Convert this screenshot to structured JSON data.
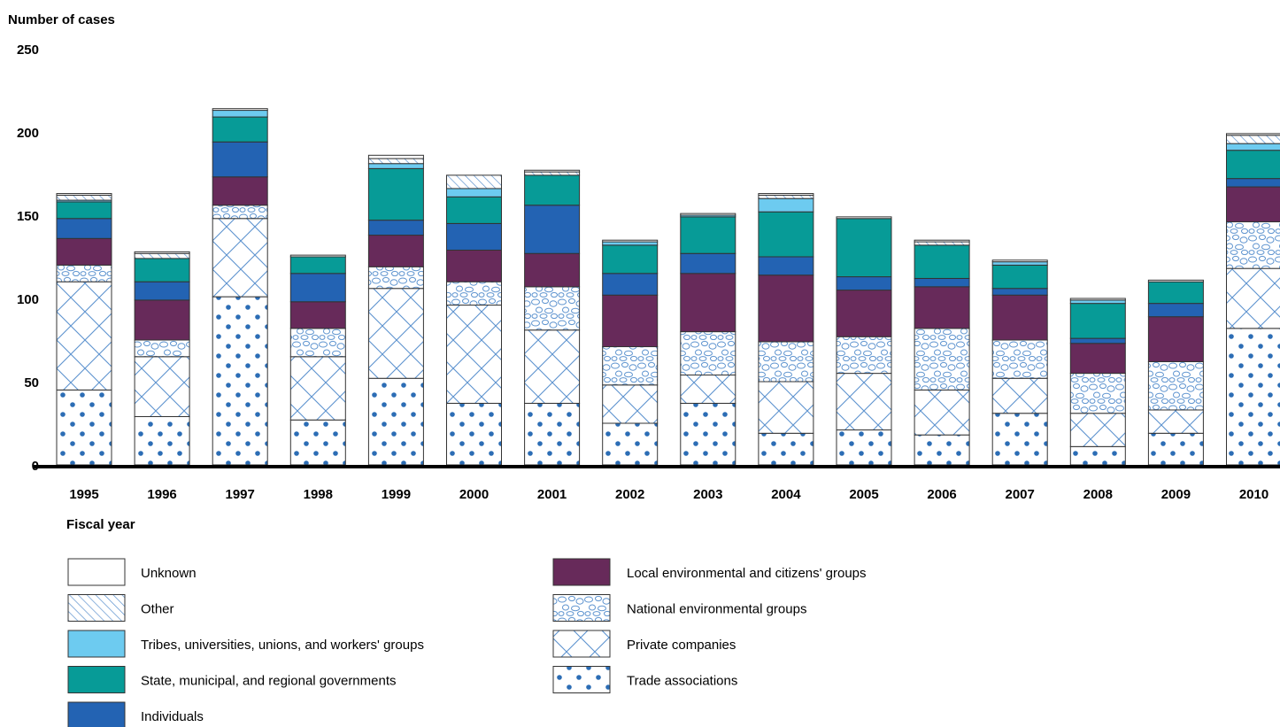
{
  "chart_data": {
    "type": "bar",
    "stacked": true,
    "ylabel": "Number of cases",
    "xlabel": "Fiscal year",
    "ylim": [
      0,
      250
    ],
    "yticks": [
      0,
      50,
      100,
      150,
      200,
      250
    ],
    "grid": false,
    "legend_position": "bottom",
    "categories": [
      "1995",
      "1996",
      "1997",
      "1998",
      "1999",
      "2000",
      "2001",
      "2002",
      "2003",
      "2004",
      "2005",
      "2006",
      "2007",
      "2008",
      "2009",
      "2010"
    ],
    "series": [
      {
        "name": "Trade associations",
        "pattern": "dots",
        "color": "#2c6db5",
        "values": [
          45,
          29,
          101,
          27,
          52,
          37,
          37,
          25,
          37,
          19,
          21,
          18,
          31,
          11,
          19,
          82
        ]
      },
      {
        "name": "Private companies",
        "pattern": "crosshatch",
        "color": "#6aa0d8",
        "values": [
          65,
          36,
          47,
          38,
          54,
          59,
          44,
          23,
          17,
          31,
          34,
          27,
          21,
          20,
          14,
          36
        ]
      },
      {
        "name": "National environmental groups",
        "pattern": "pebbles",
        "color": "#6aa0d8",
        "values": [
          10,
          10,
          8,
          17,
          13,
          14,
          26,
          23,
          26,
          24,
          22,
          37,
          23,
          24,
          29,
          28
        ]
      },
      {
        "name": "Local environmental and citizens' groups",
        "pattern": "solid",
        "color": "#672a5a",
        "values": [
          16,
          24,
          17,
          16,
          19,
          19,
          20,
          31,
          35,
          40,
          28,
          25,
          27,
          18,
          27,
          21
        ]
      },
      {
        "name": "Individuals",
        "pattern": "solid",
        "color": "#2363b3",
        "values": [
          12,
          11,
          21,
          17,
          9,
          16,
          29,
          13,
          12,
          11,
          8,
          5,
          4,
          3,
          8,
          5
        ]
      },
      {
        "name": "State, municipal, and regional governments",
        "pattern": "solid",
        "color": "#079b97",
        "values": [
          10,
          14,
          15,
          10,
          31,
          16,
          18,
          17,
          22,
          27,
          35,
          20,
          14,
          21,
          13,
          17
        ]
      },
      {
        "name": "Tribes, universities, unions, and workers' groups",
        "pattern": "solid",
        "color": "#6dcbf0",
        "values": [
          1,
          0,
          4,
          0,
          3,
          5,
          0,
          2,
          1,
          8,
          0,
          0,
          2,
          2,
          0,
          4
        ]
      },
      {
        "name": "Other",
        "pattern": "diagonal",
        "color": "#6aa0d8",
        "values": [
          3,
          3,
          0,
          0,
          3,
          8,
          2,
          0,
          0,
          2,
          0,
          2,
          0,
          0,
          0,
          5
        ]
      },
      {
        "name": "Unknown",
        "pattern": "outline",
        "color": "#ffffff",
        "values": [
          1,
          1,
          1,
          1,
          2,
          0,
          1,
          1,
          1,
          1,
          1,
          1,
          1,
          1,
          1,
          1
        ]
      }
    ],
    "legend_order": [
      "Unknown",
      "Other",
      "Tribes, universities, unions, and workers' groups",
      "State, municipal, and regional governments",
      "Individuals",
      "Local environmental and citizens' groups",
      "National environmental groups",
      "Private companies",
      "Trade associations"
    ]
  }
}
